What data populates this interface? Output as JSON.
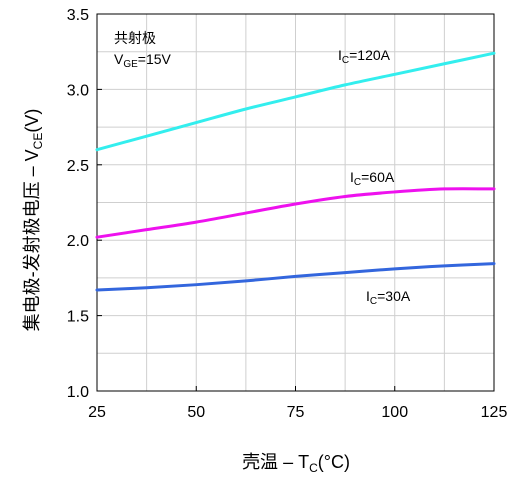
{
  "chart_data": {
    "type": "line",
    "xlabel": "壳温  – T",
    "xlabel_sub": "C",
    "xlabel_tail": "(°C)",
    "ylabel": "集电极-发射极电压  – V",
    "ylabel_sub": "CE",
    "ylabel_tail": "(V)",
    "xlim": [
      25,
      125
    ],
    "ylim": [
      1.0,
      3.5
    ],
    "x_ticks": [
      25,
      50,
      75,
      100,
      125
    ],
    "x_tick_labels": [
      "25",
      "50",
      "75",
      "100",
      "125"
    ],
    "y_ticks": [
      1.0,
      1.5,
      2.0,
      2.5,
      3.0,
      3.5
    ],
    "y_tick_labels": [
      "1.0",
      "1.5",
      "2.0",
      "2.5",
      "3.0",
      "3.5"
    ],
    "grid": true,
    "note_line1": "共射极",
    "note_line2_main": "V",
    "note_line2_sub": "GE",
    "note_line2_tail": "=15V",
    "series": [
      {
        "label_main": "I",
        "label_sub": "C",
        "label_tail": "=120A",
        "color": "#33eeee",
        "x": [
          25,
          37.5,
          50,
          62.5,
          75,
          87.5,
          100,
          112.5,
          125
        ],
        "y": [
          2.6,
          2.69,
          2.78,
          2.87,
          2.95,
          3.03,
          3.1,
          3.17,
          3.24
        ]
      },
      {
        "label_main": "I",
        "label_sub": "C",
        "label_tail": "=60A",
        "color": "#ee11ee",
        "x": [
          25,
          37.5,
          50,
          62.5,
          75,
          87.5,
          100,
          112.5,
          125
        ],
        "y": [
          2.02,
          2.07,
          2.12,
          2.18,
          2.24,
          2.29,
          2.32,
          2.34,
          2.34
        ]
      },
      {
        "label_main": "I",
        "label_sub": "C",
        "label_tail": "=30A",
        "color": "#3366dd",
        "x": [
          25,
          37.5,
          50,
          62.5,
          75,
          87.5,
          100,
          112.5,
          125
        ],
        "y": [
          1.67,
          1.685,
          1.705,
          1.73,
          1.76,
          1.785,
          1.81,
          1.83,
          1.845
        ]
      }
    ]
  }
}
